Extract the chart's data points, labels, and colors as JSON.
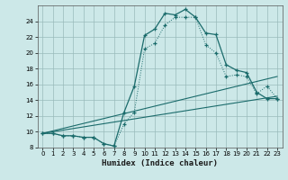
{
  "xlabel": "Humidex (Indice chaleur)",
  "xlim": [
    -0.5,
    23.5
  ],
  "ylim": [
    8,
    26
  ],
  "xticks": [
    0,
    1,
    2,
    3,
    4,
    5,
    6,
    7,
    8,
    9,
    10,
    11,
    12,
    13,
    14,
    15,
    16,
    17,
    18,
    19,
    20,
    21,
    22,
    23
  ],
  "yticks": [
    8,
    10,
    12,
    14,
    16,
    18,
    20,
    22,
    24
  ],
  "bg_color": "#cce8e8",
  "grid_color": "#99bbbb",
  "line_color": "#1a6b6b",
  "series1_x": [
    0,
    1,
    2,
    3,
    4,
    5,
    6,
    7,
    8,
    9,
    10,
    11,
    12,
    13,
    14,
    15,
    16,
    17,
    18,
    19,
    20,
    21,
    22,
    23
  ],
  "series1_y": [
    9.8,
    9.8,
    9.5,
    9.5,
    9.3,
    9.3,
    8.5,
    8.2,
    12.5,
    15.8,
    22.2,
    23.0,
    25.0,
    24.8,
    25.5,
    24.5,
    22.5,
    22.3,
    18.5,
    17.8,
    17.5,
    15.0,
    14.2,
    14.2
  ],
  "series2_x": [
    0,
    1,
    2,
    3,
    4,
    5,
    6,
    7,
    8,
    9,
    10,
    11,
    12,
    13,
    14,
    15,
    16,
    17,
    18,
    19,
    20,
    21,
    22,
    23
  ],
  "series2_y": [
    9.8,
    9.8,
    9.5,
    9.5,
    9.3,
    9.3,
    8.5,
    8.2,
    11.0,
    12.5,
    20.5,
    21.2,
    23.5,
    24.5,
    24.5,
    24.5,
    21.0,
    20.0,
    17.0,
    17.2,
    17.0,
    14.8,
    15.8,
    14.2
  ],
  "series3_x": [
    0,
    23
  ],
  "series3_y": [
    9.8,
    17.0
  ],
  "series4_x": [
    0,
    23
  ],
  "series4_y": [
    9.8,
    14.5
  ]
}
